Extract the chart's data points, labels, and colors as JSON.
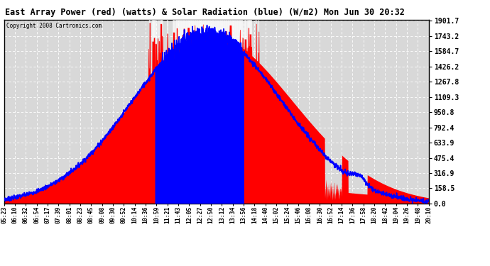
{
  "title": "East Array Power (red) (watts) & Solar Radiation (blue) (W/m2) Mon Jun 30 20:32",
  "copyright": "Copyright 2008 Cartronics.com",
  "background_color": "#ffffff",
  "plot_bg_color": "#d8d8d8",
  "y_max": 1901.7,
  "y_min": 0.0,
  "y_ticks": [
    0.0,
    158.5,
    316.9,
    475.4,
    633.9,
    792.4,
    950.8,
    1109.3,
    1267.8,
    1426.2,
    1584.7,
    1743.2,
    1901.7
  ],
  "x_labels": [
    "05:23",
    "06:10",
    "06:32",
    "06:54",
    "07:17",
    "07:39",
    "08:01",
    "08:23",
    "08:45",
    "09:08",
    "09:30",
    "09:52",
    "10:14",
    "10:36",
    "10:59",
    "11:21",
    "11:43",
    "12:05",
    "12:27",
    "12:50",
    "13:12",
    "13:34",
    "13:56",
    "14:18",
    "14:40",
    "15:02",
    "15:24",
    "15:46",
    "16:08",
    "16:30",
    "16:52",
    "17:14",
    "17:36",
    "17:58",
    "18:20",
    "18:42",
    "19:04",
    "19:26",
    "19:48",
    "20:10"
  ],
  "grid_color": "#ffffff",
  "grid_style": "--",
  "red_color": "#ff0000",
  "blue_color": "#0000ff",
  "white_color": "#ffffff"
}
